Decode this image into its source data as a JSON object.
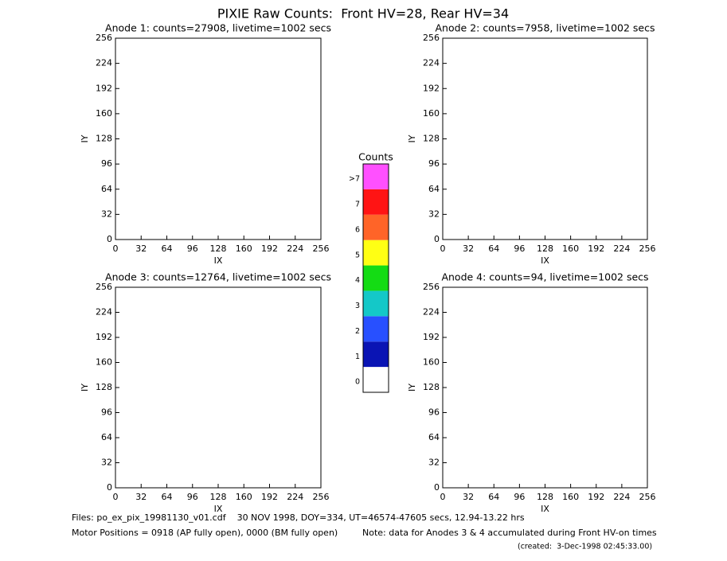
{
  "title": "PIXIE Raw Counts:  Front HV=28, Rear HV=34",
  "colorbar": {
    "title": "Counts",
    "levels": [
      "0",
      "1",
      "2",
      "3",
      "4",
      "5",
      "6",
      "7",
      ">7"
    ],
    "colors": [
      "#ffffff",
      "#0a14b4",
      "#2850ff",
      "#14c8c8",
      "#14dc14",
      "#ffff14",
      "#ff6428",
      "#ff1414",
      "#ff50ff"
    ]
  },
  "chart_data": [
    {
      "type": "heatmap",
      "title": "Anode 1: counts=27908, livetime=1002 secs",
      "xlabel": "IX",
      "ylabel": "IY",
      "xlim": [
        0,
        256
      ],
      "ylim": [
        0,
        256
      ],
      "xticks": [
        0,
        32,
        64,
        96,
        128,
        160,
        192,
        224,
        256
      ],
      "yticks": [
        0,
        32,
        64,
        96,
        128,
        160,
        192,
        224,
        256
      ]
    },
    {
      "type": "heatmap",
      "title": "Anode 2: counts=7958, livetime=1002 secs",
      "xlabel": "IX",
      "ylabel": "IY",
      "xlim": [
        0,
        256
      ],
      "ylim": [
        0,
        256
      ],
      "xticks": [
        0,
        32,
        64,
        96,
        128,
        160,
        192,
        224,
        256
      ],
      "yticks": [
        0,
        32,
        64,
        96,
        128,
        160,
        192,
        224,
        256
      ]
    },
    {
      "type": "heatmap",
      "title": "Anode 3: counts=12764, livetime=1002 secs",
      "xlabel": "IX",
      "ylabel": "IY",
      "xlim": [
        0,
        256
      ],
      "ylim": [
        0,
        256
      ],
      "xticks": [
        0,
        32,
        64,
        96,
        128,
        160,
        192,
        224,
        256
      ],
      "yticks": [
        0,
        32,
        64,
        96,
        128,
        160,
        192,
        224,
        256
      ]
    },
    {
      "type": "heatmap",
      "title": "Anode 4: counts=94, livetime=1002 secs",
      "xlabel": "IX",
      "ylabel": "IY",
      "xlim": [
        0,
        256
      ],
      "ylim": [
        0,
        256
      ],
      "xticks": [
        0,
        32,
        64,
        96,
        128,
        160,
        192,
        224,
        256
      ],
      "yticks": [
        0,
        32,
        64,
        96,
        128,
        160,
        192,
        224,
        256
      ]
    }
  ],
  "footer": {
    "files": "Files: po_ex_pix_19981130_v01.cdf    30 NOV 1998, DOY=334, UT=46574-47605 secs, 12.94-13.22 hrs",
    "motor": "Motor Positions = 0918 (AP fully open), 0000 (BM fully open)",
    "note": "Note: data for Anodes 3 & 4 accumulated during Front HV-on times",
    "created": "(created:  3-Dec-1998 02:45:33.00)"
  }
}
